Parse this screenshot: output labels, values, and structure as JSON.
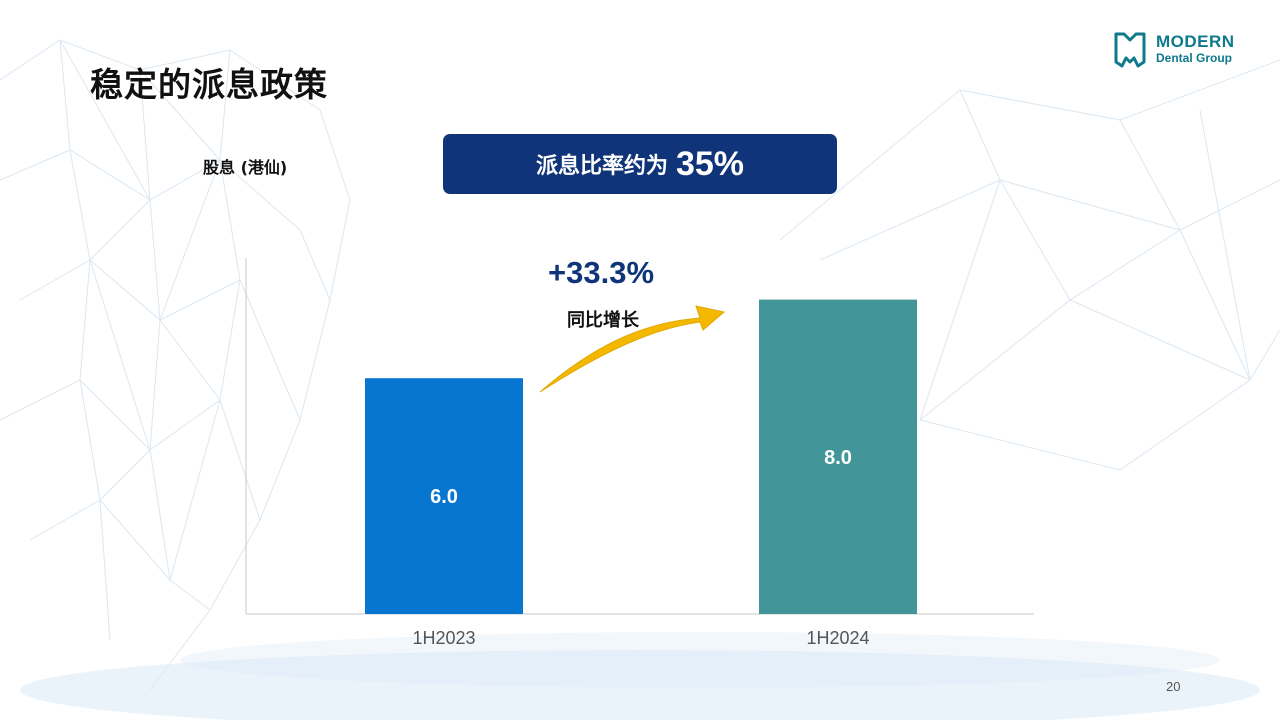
{
  "slide": {
    "title": "稳定的派息政策",
    "page_number": "20"
  },
  "logo": {
    "name": "MODERN",
    "subtitle": "Dental Group",
    "icon": "tooth-logo-icon",
    "color": "#0e7a8c"
  },
  "banner": {
    "text": "派息比率约为",
    "value": "35%",
    "color": "#0f3479"
  },
  "growth": {
    "value": "+33.3%",
    "label": "同比增长",
    "arrow_icon": "curved-arrow-icon",
    "arrow_color": "#f5b800"
  },
  "chart_data": {
    "type": "bar",
    "ylabel": "股息 (港仙)",
    "categories": [
      "1H2023",
      "1H2024"
    ],
    "values": [
      6.0,
      8.0
    ],
    "data_labels": [
      "6.0",
      "8.0"
    ],
    "colors": [
      "#0676d0",
      "#42969a"
    ],
    "ylim": [
      0,
      10
    ],
    "grid": false
  }
}
